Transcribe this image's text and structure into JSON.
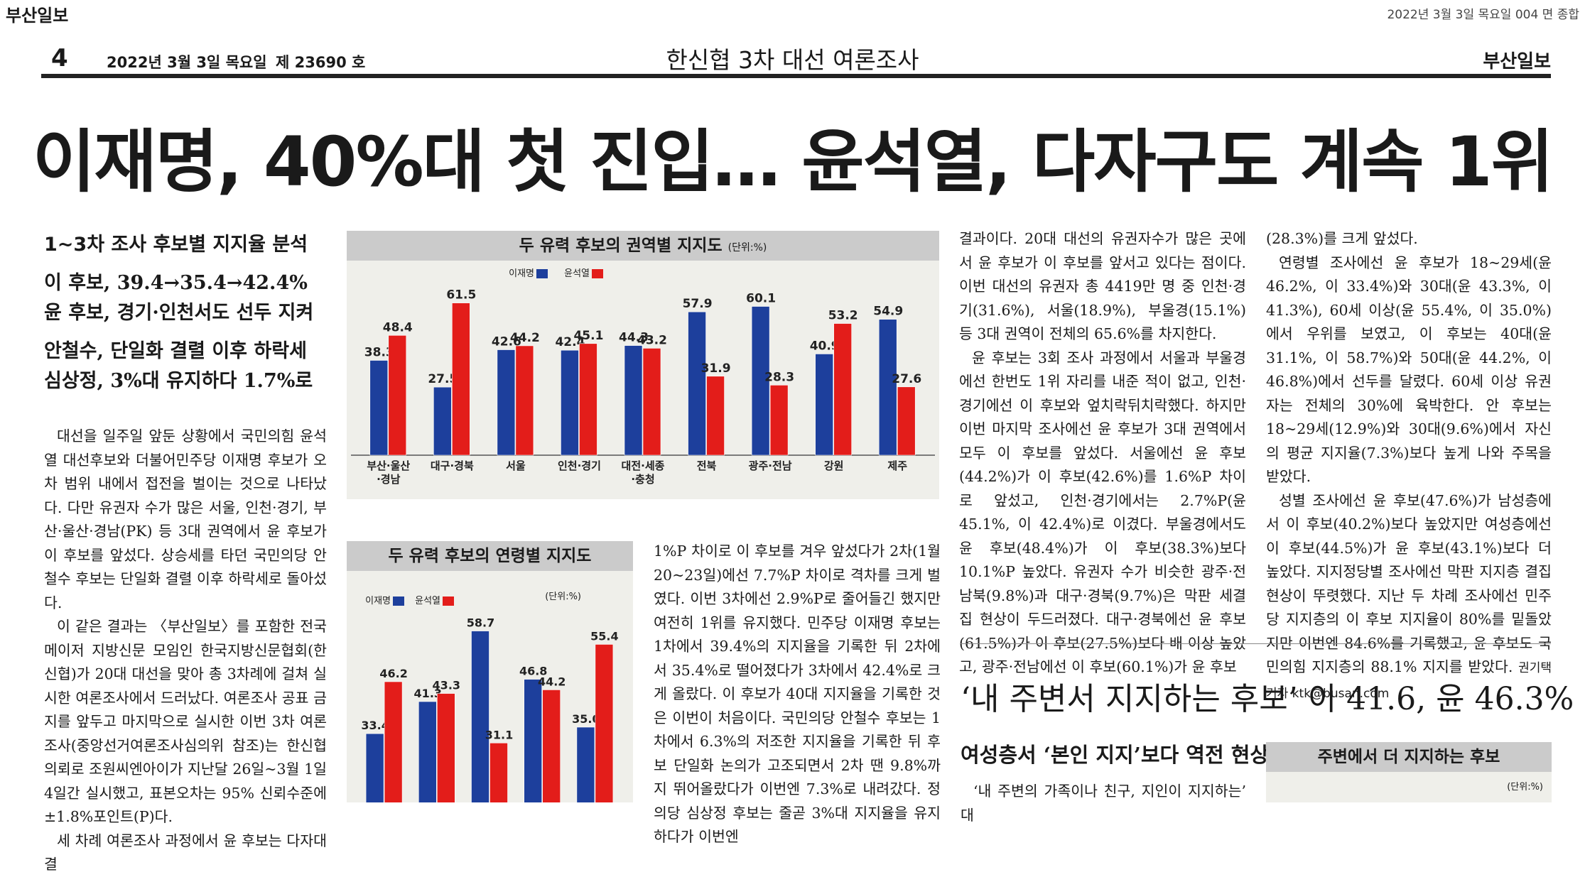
{
  "masthead": {
    "brand": "부산일보",
    "top_date": "2022년 3월 3일 목요일 004 면 종합"
  },
  "header": {
    "page_number": "4",
    "date": "2022년 3월 3일 목요일",
    "issue": "제 23690 호",
    "section": "한신협 3차 대선 여론조사",
    "brand": "부산일보"
  },
  "headline": "이재명, 40%대 첫 진입… 윤석열, 다자구도 계속 1위",
  "subheads": [
    "1~3차 조사 후보별 지지율 분석",
    "이 후보, 39.4→35.4→42.4%",
    "윤 후보, 경기·인천서도 선두 지켜",
    "안철수, 단일화 결렬 이후 하락세",
    "심상정, 3%대 유지하다 1.7%로"
  ],
  "article": {
    "col1": [
      "대선을 일주일 앞둔 상황에서 국민의힘 윤석열 대선후보와 더불어민주당 이재명 후보가 오차 범위 내에서 접전을 벌이는 것으로 나타났다. 다만 유권자 수가 많은 서울, 인천·경기, 부산·울산·경남(PK) 등 3대 권역에서 윤 후보가 이 후보를 앞섰다. 상승세를 타던 국민의당 안철수 후보는 단일화 결렬 이후 하락세로 돌아섰다.",
      "이 같은 결과는 〈부산일보〉를 포함한 전국 메이저 지방신문 모임인 한국지방신문협회(한신협)가 20대 대선을 맞아 총 3차례에 걸쳐 실시한 여론조사에서 드러났다. 여론조사 공표 금지를 앞두고 마지막으로 실시한 이번 3차 여론조사(중앙선거여론조사심의위 참조)는 한신협 의뢰로 조원씨엔아이가 지난달 26일~3월 1일 4일간 실시했고, 표본오차는 95% 신뢰수준에 ±1.8%포인트(P)다.",
      "세 차례 여론조사 과정에서 윤 후보는 다자대결"
    ],
    "col2": "1%P 차이로 이 후보를 겨우 앞섰다가 2차(1월 20~23일)에선 7.7%P 차이로 격차를 크게 벌였다. 이번 3차에선 2.9%P로 줄어들긴 했지만 여전히 1위를 유지했다. 민주당 이재명 후보는 1차에서 39.4%의 지지율을 기록한 뒤 2차에서 35.4%로 떨어졌다가 3차에서 42.4%로 크게 올랐다. 이 후보가 40대 지지율을 기록한 것은 이번이 처음이다. 국민의당 안철수 후보는 1차에서 6.3%의 저조한 지지율을 기록한 뒤 후보 단일화 논의가 고조되면서 2차 땐 9.8%까지 뛰어올랐다가 이번엔 7.3%로 내려갔다. 정의당 심상정 후보는 줄곧 3%대 지지율을 유지하다가 이번엔",
    "col3": [
      "결과이다. 20대 대선의 유권자수가 많은 곳에서 윤 후보가 이 후보를 앞서고 있다는 점이다. 이번 대선의 유권자 총 4419만 명 중 인천·경기(31.6%), 서울(18.9%), 부울경(15.1%) 등 3대 권역이 전체의 65.6%를 차지한다.",
      "윤 후보는 3회 조사 과정에서 서울과 부울경에선 한번도 1위 자리를 내준 적이 없고, 인천·경기에선 이 후보와 엎치락뒤치락했다. 하지만 이번 마지막 조사에선 윤 후보가 3대 권역에서 모두 이 후보를 앞섰다. 서울에선 윤 후보(44.2%)가 이 후보(42.6%)를 1.6%P 차이로 앞섰고, 인천·경기에서는 2.7%P(윤 45.1%, 이 42.4%)로 이겼다. 부울경에서도 윤 후보(48.4%)가 이 후보(38.3%)보다 10.1%P 높았다. 유권자 수가 비슷한 광주·전남북(9.8%)과 대구·경북(9.7%)은 막판 세결집 현상이 두드러졌다. 대구·경북에선 윤 후보(61.5%)가 이 후보(27.5%)보다 배 이상 높았고, 광주·전남에선 이 후보(60.1%)가 윤 후보"
    ],
    "col4": [
      "(28.3%)를 크게 앞섰다.",
      "연령별 조사에선 윤 후보가 18~29세(윤 46.2%, 이 33.4%)와 30대(윤 43.3%, 이 41.3%), 60세 이상(윤 55.4%, 이 35.0%)에서 우위를 보였고, 이 후보는 40대(윤 31.1%, 이 58.7%)와 50대(윤 44.2%, 이 46.8%)에서 선두를 달렸다. 60세 이상 유권자는 전체의 30%에 육박한다. 안 후보는 18~29세(12.9%)와 30대(9.6%)에서 자신의 평균 지지율(7.3%)보다 높게 나와 주목을 받았다.",
      "성별 조사에선 윤 후보(47.6%)가 남성층에서 이 후보(40.2%)보다 높았지만 여성층에선 이 후보(44.5%)가 윤 후보(43.1%)보다 더 높았다. 지지정당별 조사에선 막판 지지층 결집현상이 뚜렷했다. 지난 두 차례 조사에선 민주당 지지층의 이 후보 지지율이 80%를 밑돌았지만 이번엔 84.6%를 기록했고, 윤 후보도 국민의힘 지지층의 88.1% 지지를 받았다."
    ],
    "byline": "권기택 기자 ktk@busan.com",
    "headline2": "‘내 주변서 지지하는 후보’ 이 41.6, 윤 46.3%",
    "subhead2": "여성층서 ‘본인 지지’보다 역전 현상",
    "col5": "‘내 주변의 가족이나 친구, 지인이 지지하는’ 대"
  },
  "colors": {
    "lee": "#1d3f9c",
    "yoon": "#e31d1a",
    "title_bar": "#cbcbcb",
    "chart_bg": "#efefea"
  },
  "chart_data": [
    {
      "type": "bar",
      "title": "두 유력 후보의 권역별 지지도",
      "unit": "(단위:%)",
      "legend": [
        "이재명",
        "윤석열"
      ],
      "categories": [
        "부산·울산·경남",
        "대구·경북",
        "서울",
        "인천·경기",
        "대전·세종·충청",
        "전북",
        "광주·전남",
        "강원",
        "제주"
      ],
      "series": [
        {
          "name": "이재명",
          "values": [
            38.3,
            27.5,
            42.6,
            42.4,
            44.3,
            57.9,
            60.1,
            40.9,
            54.9
          ]
        },
        {
          "name": "윤석열",
          "values": [
            48.4,
            61.5,
            44.2,
            45.1,
            43.2,
            31.9,
            28.3,
            53.2,
            27.6
          ]
        }
      ],
      "ylim": [
        0,
        70
      ]
    },
    {
      "type": "bar",
      "title": "두 유력 후보의 연령별 지지도",
      "unit": "(단위:%)",
      "legend": [
        "이재명",
        "윤석열"
      ],
      "series": [
        {
          "name": "이재명",
          "values": [
            33.4,
            41.3,
            58.7,
            46.8,
            35.0
          ]
        },
        {
          "name": "윤석열",
          "values": [
            46.2,
            43.3,
            31.1,
            44.2,
            55.4
          ]
        }
      ],
      "ylim": [
        0,
        70
      ]
    },
    {
      "type": "bar",
      "title": "주변에서 더 지지하는 후보",
      "unit": "(단위:%)"
    }
  ]
}
